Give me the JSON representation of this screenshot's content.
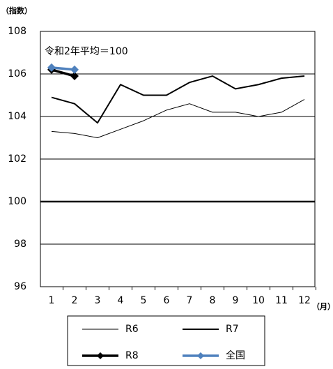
{
  "chart_data": {
    "type": "line",
    "y_label": "（指数）",
    "x_unit": "（月）",
    "annotation": "令和2年平均＝100",
    "categories": [
      "1",
      "2",
      "3",
      "4",
      "5",
      "6",
      "7",
      "8",
      "9",
      "10",
      "11",
      "12"
    ],
    "series": [
      {
        "name": "R6",
        "color": "#000000",
        "style": "thin",
        "marker": null,
        "values": [
          103.3,
          103.2,
          103.0,
          103.4,
          103.8,
          104.3,
          104.6,
          104.2,
          104.2,
          104.0,
          104.2,
          104.8
        ]
      },
      {
        "name": "R7",
        "color": "#000000",
        "style": "medium",
        "marker": null,
        "values": [
          104.9,
          104.6,
          103.7,
          105.5,
          105.0,
          105.0,
          105.6,
          105.9,
          105.3,
          105.5,
          105.8,
          105.9
        ]
      },
      {
        "name": "R8",
        "color": "#000000",
        "style": "heavy",
        "marker": "diamond",
        "values": [
          106.2,
          105.9,
          null,
          null,
          null,
          null,
          null,
          null,
          null,
          null,
          null,
          null
        ]
      },
      {
        "name": "全国",
        "color": "#4f81bd",
        "style": "heavy",
        "marker": "diamond",
        "values": [
          106.3,
          106.2,
          null,
          null,
          null,
          null,
          null,
          null,
          null,
          null,
          null,
          null
        ]
      }
    ],
    "ylim": [
      96,
      108
    ],
    "yticks": [
      96,
      98,
      100,
      102,
      104,
      106,
      108
    ],
    "grid": true,
    "reference_line": 100,
    "legend": "bottom"
  }
}
